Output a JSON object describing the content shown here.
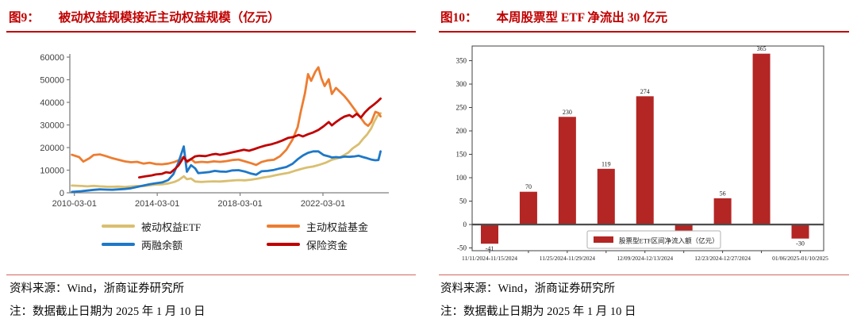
{
  "figures": [
    {
      "title_prefix": "图9：",
      "title": "被动权益规模接近主动权益规模（亿元）",
      "source": "资料来源：Wind，浙商证券研究所",
      "note": "注：数据截止日期为 2025 年 1 月 10 日"
    },
    {
      "title_prefix": "图10：",
      "title": "本周股票型 ETF 净流出 30 亿元",
      "source": "资料来源：Wind，浙商证券研究所",
      "note": "注：数据截止日期为 2025 年 1 月 10 日"
    }
  ],
  "colors": {
    "title_red": "#c00000",
    "rule_red": "#c00000",
    "hairline_red": "#d6675f",
    "axis_gray": "#7f7f7f",
    "label_gray": "#3f3f3f",
    "bar_red": "#b32624",
    "box_dark": "#404040"
  },
  "chart_data": [
    {
      "type": "line",
      "title": "被动权益规模接近主动权益规模（亿元）",
      "ylabel": "",
      "xlabel": "",
      "grid": false,
      "legend_position": "below",
      "ylim": [
        0,
        60000
      ],
      "yticks": [
        0,
        10000,
        20000,
        30000,
        40000,
        50000,
        60000
      ],
      "xlim": [
        2009.95,
        2025.35
      ],
      "xticks": [
        {
          "x": 2010.17,
          "label": "2010-03-01"
        },
        {
          "x": 2014.17,
          "label": "2014-03-01"
        },
        {
          "x": 2018.17,
          "label": "2018-03-01"
        },
        {
          "x": 2022.17,
          "label": "2022-03-01"
        }
      ],
      "series": [
        {
          "name": "被动权益ETF",
          "color": "#d9bf70",
          "points": [
            [
              2010.05,
              3200
            ],
            [
              2010.5,
              3000
            ],
            [
              2010.8,
              2850
            ],
            [
              2011.1,
              3050
            ],
            [
              2011.4,
              2850
            ],
            [
              2011.7,
              2700
            ],
            [
              2012.0,
              2650
            ],
            [
              2012.3,
              2750
            ],
            [
              2012.6,
              2600
            ],
            [
              2012.9,
              2800
            ],
            [
              2013.2,
              3000
            ],
            [
              2013.5,
              2950
            ],
            [
              2013.8,
              3300
            ],
            [
              2014.1,
              3650
            ],
            [
              2014.4,
              3750
            ],
            [
              2014.7,
              4100
            ],
            [
              2015.0,
              4800
            ],
            [
              2015.2,
              5600
            ],
            [
              2015.45,
              7300
            ],
            [
              2015.6,
              6000
            ],
            [
              2015.8,
              6300
            ],
            [
              2016.0,
              5000
            ],
            [
              2016.3,
              4800
            ],
            [
              2016.6,
              4950
            ],
            [
              2016.9,
              5050
            ],
            [
              2017.2,
              5000
            ],
            [
              2017.5,
              5200
            ],
            [
              2017.8,
              5450
            ],
            [
              2018.1,
              5600
            ],
            [
              2018.4,
              5500
            ],
            [
              2018.7,
              5800
            ],
            [
              2019.0,
              6200
            ],
            [
              2019.3,
              6800
            ],
            [
              2019.6,
              7200
            ],
            [
              2019.9,
              7800
            ],
            [
              2020.2,
              8300
            ],
            [
              2020.5,
              8800
            ],
            [
              2020.8,
              9700
            ],
            [
              2021.1,
              10500
            ],
            [
              2021.4,
              11200
            ],
            [
              2021.7,
              11600
            ],
            [
              2022.0,
              12400
            ],
            [
              2022.3,
              13300
            ],
            [
              2022.6,
              14600
            ],
            [
              2022.9,
              15300
            ],
            [
              2023.1,
              16200
            ],
            [
              2023.4,
              17800
            ],
            [
              2023.6,
              19600
            ],
            [
              2023.9,
              21500
            ],
            [
              2024.1,
              23800
            ],
            [
              2024.3,
              25800
            ],
            [
              2024.5,
              28500
            ],
            [
              2024.65,
              31500
            ],
            [
              2024.8,
              34000
            ],
            [
              2024.95,
              35200
            ]
          ]
        },
        {
          "name": "主动权益基金",
          "color": "#ed7d31",
          "points": [
            [
              2010.05,
              16800
            ],
            [
              2010.4,
              15800
            ],
            [
              2010.6,
              13800
            ],
            [
              2010.9,
              15300
            ],
            [
              2011.1,
              16700
            ],
            [
              2011.4,
              17000
            ],
            [
              2011.7,
              16200
            ],
            [
              2012.0,
              15300
            ],
            [
              2012.3,
              14600
            ],
            [
              2012.6,
              13900
            ],
            [
              2012.9,
              13500
            ],
            [
              2013.2,
              13700
            ],
            [
              2013.5,
              12900
            ],
            [
              2013.8,
              13300
            ],
            [
              2014.1,
              12700
            ],
            [
              2014.4,
              12600
            ],
            [
              2014.7,
              12900
            ],
            [
              2015.0,
              13600
            ],
            [
              2015.2,
              14400
            ],
            [
              2015.45,
              15900
            ],
            [
              2015.6,
              13400
            ],
            [
              2015.8,
              14900
            ],
            [
              2016.0,
              13400
            ],
            [
              2016.3,
              13700
            ],
            [
              2016.6,
              13500
            ],
            [
              2016.9,
              13900
            ],
            [
              2017.2,
              13700
            ],
            [
              2017.5,
              14000
            ],
            [
              2017.8,
              14500
            ],
            [
              2018.1,
              14700
            ],
            [
              2018.4,
              13900
            ],
            [
              2018.7,
              13100
            ],
            [
              2018.95,
              12300
            ],
            [
              2019.2,
              13600
            ],
            [
              2019.5,
              14300
            ],
            [
              2019.8,
              14600
            ],
            [
              2020.1,
              16200
            ],
            [
              2020.4,
              19000
            ],
            [
              2020.7,
              23500
            ],
            [
              2020.95,
              29000
            ],
            [
              2021.1,
              36000
            ],
            [
              2021.3,
              44000
            ],
            [
              2021.45,
              52500
            ],
            [
              2021.6,
              49500
            ],
            [
              2021.8,
              53500
            ],
            [
              2021.95,
              55500
            ],
            [
              2022.1,
              50500
            ],
            [
              2022.25,
              47200
            ],
            [
              2022.45,
              50200
            ],
            [
              2022.6,
              43700
            ],
            [
              2022.8,
              46400
            ],
            [
              2023.0,
              44600
            ],
            [
              2023.2,
              42800
            ],
            [
              2023.4,
              40600
            ],
            [
              2023.6,
              38100
            ],
            [
              2023.8,
              35600
            ],
            [
              2024.0,
              33100
            ],
            [
              2024.2,
              30600
            ],
            [
              2024.35,
              29600
            ],
            [
              2024.5,
              31200
            ],
            [
              2024.7,
              35800
            ],
            [
              2024.85,
              35300
            ],
            [
              2024.95,
              33800
            ]
          ]
        },
        {
          "name": "两融余额",
          "color": "#1e78c8",
          "points": [
            [
              2010.05,
              400
            ],
            [
              2010.5,
              700
            ],
            [
              2010.8,
              1000
            ],
            [
              2011.1,
              1300
            ],
            [
              2011.4,
              1500
            ],
            [
              2011.7,
              1400
            ],
            [
              2012.0,
              1350
            ],
            [
              2012.3,
              1500
            ],
            [
              2012.6,
              1700
            ],
            [
              2012.9,
              2000
            ],
            [
              2013.2,
              2600
            ],
            [
              2013.5,
              3200
            ],
            [
              2013.8,
              3800
            ],
            [
              2014.1,
              4200
            ],
            [
              2014.4,
              4600
            ],
            [
              2014.7,
              5600
            ],
            [
              2014.95,
              8200
            ],
            [
              2015.2,
              13500
            ],
            [
              2015.45,
              20500
            ],
            [
              2015.6,
              9300
            ],
            [
              2015.8,
              12200
            ],
            [
              2016.0,
              10800
            ],
            [
              2016.15,
              8700
            ],
            [
              2016.4,
              8900
            ],
            [
              2016.7,
              9200
            ],
            [
              2016.95,
              9700
            ],
            [
              2017.2,
              9400
            ],
            [
              2017.5,
              9300
            ],
            [
              2017.8,
              9900
            ],
            [
              2018.1,
              10000
            ],
            [
              2018.4,
              9400
            ],
            [
              2018.7,
              8500
            ],
            [
              2018.95,
              8000
            ],
            [
              2019.2,
              9500
            ],
            [
              2019.5,
              9700
            ],
            [
              2019.8,
              10100
            ],
            [
              2020.1,
              10800
            ],
            [
              2020.4,
              11400
            ],
            [
              2020.7,
              12800
            ],
            [
              2020.95,
              14800
            ],
            [
              2021.2,
              16500
            ],
            [
              2021.45,
              17700
            ],
            [
              2021.7,
              18300
            ],
            [
              2021.95,
              18300
            ],
            [
              2022.2,
              16700
            ],
            [
              2022.45,
              16100
            ],
            [
              2022.6,
              15600
            ],
            [
              2022.8,
              15800
            ],
            [
              2023.0,
              15600
            ],
            [
              2023.2,
              16000
            ],
            [
              2023.45,
              15900
            ],
            [
              2023.7,
              16100
            ],
            [
              2023.9,
              16400
            ],
            [
              2024.1,
              15800
            ],
            [
              2024.3,
              15300
            ],
            [
              2024.5,
              14700
            ],
            [
              2024.7,
              14400
            ],
            [
              2024.85,
              14500
            ],
            [
              2024.95,
              18300
            ]
          ]
        },
        {
          "name": "保险资金",
          "color": "#c00000",
          "points": [
            [
              2013.3,
              6800
            ],
            [
              2013.6,
              7300
            ],
            [
              2013.9,
              7700
            ],
            [
              2014.1,
              8100
            ],
            [
              2014.4,
              8400
            ],
            [
              2014.6,
              9100
            ],
            [
              2014.8,
              8800
            ],
            [
              2015.0,
              10300
            ],
            [
              2015.2,
              12100
            ],
            [
              2015.45,
              15800
            ],
            [
              2015.6,
              13900
            ],
            [
              2015.8,
              14900
            ],
            [
              2016.0,
              16100
            ],
            [
              2016.2,
              16400
            ],
            [
              2016.5,
              16200
            ],
            [
              2016.8,
              16900
            ],
            [
              2017.0,
              17200
            ],
            [
              2017.2,
              16800
            ],
            [
              2017.5,
              17300
            ],
            [
              2017.8,
              17900
            ],
            [
              2018.1,
              18500
            ],
            [
              2018.35,
              19000
            ],
            [
              2018.6,
              18600
            ],
            [
              2018.85,
              19300
            ],
            [
              2019.1,
              20100
            ],
            [
              2019.4,
              20900
            ],
            [
              2019.7,
              21500
            ],
            [
              2019.95,
              22200
            ],
            [
              2020.2,
              23100
            ],
            [
              2020.5,
              24300
            ],
            [
              2020.75,
              24700
            ],
            [
              2021.0,
              25600
            ],
            [
              2021.2,
              24900
            ],
            [
              2021.45,
              25900
            ],
            [
              2021.7,
              26700
            ],
            [
              2021.95,
              27800
            ],
            [
              2022.2,
              29400
            ],
            [
              2022.45,
              31300
            ],
            [
              2022.6,
              29800
            ],
            [
              2022.8,
              31300
            ],
            [
              2023.0,
              32600
            ],
            [
              2023.2,
              33700
            ],
            [
              2023.45,
              34400
            ],
            [
              2023.6,
              33500
            ],
            [
              2023.8,
              34900
            ],
            [
              2024.0,
              33300
            ],
            [
              2024.2,
              35600
            ],
            [
              2024.4,
              37400
            ],
            [
              2024.6,
              38800
            ],
            [
              2024.8,
              40300
            ],
            [
              2024.95,
              41700
            ]
          ]
        }
      ]
    },
    {
      "type": "bar",
      "title": "本周股票型 ETF 净流出 30 亿元",
      "legend": "股票型ETF区间净流入额（亿元）",
      "legend_position": "inside-bottom-right",
      "grid": false,
      "ylim": [
        -62,
        383
      ],
      "yticks": [
        -50,
        0,
        50,
        100,
        150,
        200,
        250,
        300,
        350
      ],
      "values": [
        -41,
        70,
        230,
        119,
        274,
        -40,
        56,
        365,
        -30
      ],
      "bar_labels": [
        "-41",
        "70",
        "230",
        "119",
        "274",
        "",
        "56",
        "365",
        "-30"
      ],
      "tick_labels": [
        "11/11/2024-11/15/2024",
        "",
        "11/25/2024-11/29/2024",
        "",
        "12/09/2024-12/13/2024",
        "",
        "12/23/2024-12/27/2024",
        "",
        "01/06/2025-01/10/2025"
      ],
      "bar_color": "#b32624"
    }
  ]
}
